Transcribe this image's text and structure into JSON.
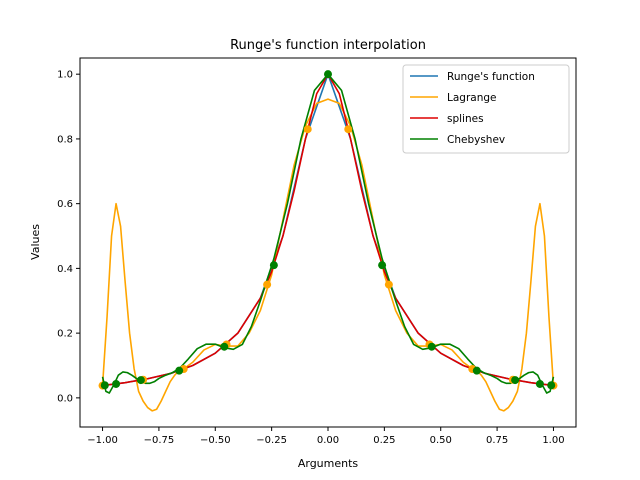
{
  "chart_data": {
    "type": "line",
    "title": "Runge's function interpolation",
    "xlabel": "Arguments",
    "ylabel": "Values",
    "xlim": [
      -1.1,
      1.1
    ],
    "ylim": [
      -0.09,
      1.05
    ],
    "xticks": [
      -1.0,
      -0.75,
      -0.5,
      -0.25,
      0.0,
      0.25,
      0.5,
      0.75,
      1.0
    ],
    "xtick_labels": [
      "−1.00",
      "−0.75",
      "−0.50",
      "−0.25",
      "0.00",
      "0.25",
      "0.50",
      "0.75",
      "1.00"
    ],
    "yticks": [
      0.0,
      0.2,
      0.4,
      0.6,
      0.8,
      1.0
    ],
    "ytick_labels": [
      "0.0",
      "0.2",
      "0.4",
      "0.6",
      "0.8",
      "1.0"
    ],
    "grid": false,
    "legend_position": "top-right",
    "series": [
      {
        "name": "Runge's function",
        "color": "#1f77b4",
        "x": [
          -1.0,
          -0.9,
          -0.8,
          -0.7,
          -0.6,
          -0.5,
          -0.4,
          -0.3,
          -0.2,
          -0.1,
          0.0,
          0.1,
          0.2,
          0.3,
          0.4,
          0.5,
          0.6,
          0.7,
          0.8,
          0.9,
          1.0
        ],
        "y": [
          0.038,
          0.047,
          0.059,
          0.075,
          0.1,
          0.138,
          0.2,
          0.308,
          0.5,
          0.8,
          1.0,
          0.8,
          0.5,
          0.308,
          0.2,
          0.138,
          0.1,
          0.075,
          0.059,
          0.047,
          0.038
        ]
      },
      {
        "name": "Lagrange",
        "color": "#ffa500",
        "x": [
          -1.0,
          -0.98,
          -0.96,
          -0.94,
          -0.92,
          -0.9,
          -0.88,
          -0.86,
          -0.84,
          -0.82,
          -0.8,
          -0.78,
          -0.76,
          -0.74,
          -0.72,
          -0.7,
          -0.68,
          -0.66,
          -0.64,
          -0.6,
          -0.55,
          -0.5,
          -0.45,
          -0.4,
          -0.35,
          -0.3,
          -0.25,
          -0.2,
          -0.15,
          -0.1,
          -0.05,
          0.0,
          0.05,
          0.1,
          0.15,
          0.2,
          0.25,
          0.3,
          0.35,
          0.4,
          0.45,
          0.5,
          0.55,
          0.6,
          0.64,
          0.66,
          0.68,
          0.7,
          0.72,
          0.74,
          0.76,
          0.78,
          0.8,
          0.82,
          0.84,
          0.86,
          0.88,
          0.9,
          0.92,
          0.94,
          0.96,
          0.98,
          1.0
        ],
        "y": [
          0.038,
          0.25,
          0.5,
          0.6,
          0.53,
          0.36,
          0.2,
          0.09,
          0.02,
          -0.01,
          -0.03,
          -0.04,
          -0.035,
          -0.01,
          0.02,
          0.05,
          0.07,
          0.085,
          0.09,
          0.11,
          0.148,
          0.165,
          0.16,
          0.16,
          0.2,
          0.27,
          0.38,
          0.55,
          0.72,
          0.84,
          0.91,
          0.923,
          0.91,
          0.84,
          0.72,
          0.55,
          0.38,
          0.27,
          0.2,
          0.16,
          0.16,
          0.165,
          0.148,
          0.11,
          0.09,
          0.085,
          0.07,
          0.05,
          0.02,
          -0.01,
          -0.035,
          -0.04,
          -0.03,
          -0.01,
          0.02,
          0.09,
          0.2,
          0.36,
          0.53,
          0.6,
          0.5,
          0.25,
          0.038
        ]
      },
      {
        "name": "splines",
        "color": "#dd0000",
        "x": [
          -1.0,
          -0.9,
          -0.8,
          -0.7,
          -0.6,
          -0.5,
          -0.4,
          -0.3,
          -0.25,
          -0.2,
          -0.15,
          -0.1,
          -0.05,
          0.0,
          0.05,
          0.1,
          0.15,
          0.2,
          0.25,
          0.3,
          0.4,
          0.5,
          0.6,
          0.7,
          0.8,
          0.9,
          1.0
        ],
        "y": [
          0.038,
          0.047,
          0.059,
          0.075,
          0.1,
          0.138,
          0.2,
          0.308,
          0.39,
          0.5,
          0.64,
          0.8,
          0.94,
          1.0,
          0.94,
          0.8,
          0.64,
          0.5,
          0.39,
          0.308,
          0.2,
          0.138,
          0.1,
          0.075,
          0.059,
          0.047,
          0.038
        ]
      },
      {
        "name": "Chebyshev",
        "color": "#008000",
        "x": [
          -1.0,
          -0.985,
          -0.97,
          -0.95,
          -0.93,
          -0.91,
          -0.89,
          -0.87,
          -0.85,
          -0.83,
          -0.81,
          -0.79,
          -0.77,
          -0.75,
          -0.72,
          -0.69,
          -0.66,
          -0.62,
          -0.58,
          -0.54,
          -0.5,
          -0.46,
          -0.42,
          -0.38,
          -0.34,
          -0.3,
          -0.24,
          -0.18,
          -0.12,
          -0.06,
          0.0,
          0.06,
          0.12,
          0.18,
          0.24,
          0.3,
          0.34,
          0.38,
          0.42,
          0.46,
          0.5,
          0.54,
          0.58,
          0.62,
          0.66,
          0.69,
          0.72,
          0.75,
          0.77,
          0.79,
          0.81,
          0.83,
          0.85,
          0.87,
          0.89,
          0.91,
          0.93,
          0.95,
          0.97,
          0.985,
          1.0
        ],
        "y": [
          0.065,
          0.02,
          0.015,
          0.04,
          0.07,
          0.08,
          0.078,
          0.07,
          0.06,
          0.05,
          0.045,
          0.045,
          0.05,
          0.06,
          0.07,
          0.078,
          0.09,
          0.12,
          0.152,
          0.166,
          0.166,
          0.155,
          0.15,
          0.165,
          0.22,
          0.3,
          0.43,
          0.6,
          0.8,
          0.95,
          1.0,
          0.95,
          0.8,
          0.6,
          0.43,
          0.3,
          0.22,
          0.165,
          0.15,
          0.155,
          0.166,
          0.166,
          0.152,
          0.12,
          0.09,
          0.078,
          0.07,
          0.06,
          0.05,
          0.045,
          0.045,
          0.05,
          0.06,
          0.07,
          0.078,
          0.08,
          0.07,
          0.04,
          0.015,
          0.02,
          0.065
        ]
      }
    ],
    "points": [
      {
        "color": "#ffa500",
        "x": [
          -1.0,
          -0.82,
          -0.64,
          -0.45,
          -0.27,
          -0.09,
          0.09,
          0.27,
          0.45,
          0.64,
          0.82,
          1.0
        ],
        "y": [
          0.038,
          0.056,
          0.089,
          0.165,
          0.35,
          0.83,
          0.83,
          0.35,
          0.165,
          0.089,
          0.056,
          0.038
        ]
      },
      {
        "color": "#008000",
        "x": [
          -0.99,
          -0.94,
          -0.83,
          -0.66,
          -0.46,
          -0.24,
          0.0,
          0.24,
          0.46,
          0.66,
          0.83,
          0.94,
          0.99
        ],
        "y": [
          0.039,
          0.043,
          0.055,
          0.084,
          0.158,
          0.41,
          1.0,
          0.41,
          0.158,
          0.084,
          0.055,
          0.043,
          0.039
        ]
      }
    ]
  }
}
